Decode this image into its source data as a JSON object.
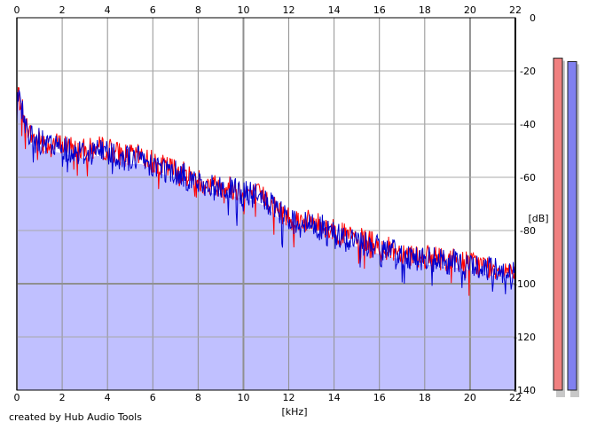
{
  "chart_data": {
    "type": "area",
    "title": "",
    "xlabel": "[kHz]",
    "ylabel": "[dB]",
    "xlim": [
      0,
      22
    ],
    "ylim": [
      -140,
      0
    ],
    "x_ticks": [
      0,
      2,
      4,
      6,
      8,
      10,
      12,
      14,
      16,
      18,
      20,
      22
    ],
    "y_ticks": [
      0,
      -20,
      -40,
      -60,
      -80,
      -100,
      -120,
      -140
    ],
    "x_tick_labels": [
      "0",
      "2",
      "4",
      "6",
      "8",
      "10",
      "12",
      "14",
      "16",
      "18",
      "20",
      "22"
    ],
    "y_tick_labels": [
      "0",
      "-20",
      "-40",
      "-60",
      "-80",
      "-100",
      "-120",
      "-140"
    ],
    "grid": true,
    "legend": false,
    "fill_color": "#c0c0ff",
    "series": [
      {
        "color": "#ff0000",
        "x": [
          0.0,
          0.05,
          0.1,
          0.2,
          0.3,
          0.4,
          0.6,
          0.8,
          1.0,
          1.2,
          1.5,
          2.0,
          2.5,
          3.0,
          3.5,
          4.0,
          4.5,
          5.0,
          5.5,
          6.0,
          6.5,
          7.0,
          7.5,
          8.0,
          8.5,
          9.0,
          9.5,
          10.0,
          10.5,
          11.0,
          11.5,
          12.0,
          12.5,
          13.0,
          13.5,
          14.0,
          14.5,
          15.0,
          15.5,
          16.0,
          16.5,
          17.0,
          17.5,
          18.0,
          18.5,
          19.0,
          19.5,
          20.0,
          20.5,
          21.0,
          21.5,
          22.0
        ],
        "y": [
          -38,
          -27,
          -30,
          -33,
          -36,
          -40,
          -44,
          -46,
          -45,
          -47,
          -47,
          -48,
          -49,
          -50,
          -49,
          -49,
          -51,
          -52,
          -52,
          -54,
          -56,
          -57,
          -59,
          -61,
          -63,
          -63,
          -64,
          -65,
          -66,
          -68,
          -72,
          -75,
          -76,
          -77,
          -78,
          -80,
          -82,
          -83,
          -84,
          -86,
          -87,
          -88,
          -89,
          -90,
          -90,
          -91,
          -91,
          -92,
          -93,
          -94,
          -94,
          -95
        ]
      },
      {
        "color": "#0000d0",
        "x": [
          0.0,
          0.05,
          0.1,
          0.2,
          0.3,
          0.4,
          0.6,
          0.8,
          1.0,
          1.2,
          1.5,
          2.0,
          2.5,
          3.0,
          3.5,
          4.0,
          4.5,
          5.0,
          5.5,
          6.0,
          6.5,
          7.0,
          7.5,
          8.0,
          8.5,
          9.0,
          9.5,
          10.0,
          10.5,
          11.0,
          11.5,
          12.0,
          12.5,
          13.0,
          13.5,
          14.0,
          14.5,
          15.0,
          15.5,
          16.0,
          16.5,
          17.0,
          17.5,
          18.0,
          18.5,
          19.0,
          19.5,
          20.0,
          20.5,
          21.0,
          21.5,
          22.0
        ],
        "y": [
          -40,
          -26,
          -29,
          -34,
          -37,
          -41,
          -45,
          -47,
          -46,
          -48,
          -48,
          -49,
          -50,
          -51,
          -50,
          -50,
          -52,
          -53,
          -53,
          -55,
          -57,
          -58,
          -60,
          -62,
          -64,
          -64,
          -65,
          -66,
          -67,
          -69,
          -73,
          -76,
          -77,
          -78,
          -79,
          -81,
          -83,
          -84,
          -85,
          -87,
          -88,
          -89,
          -90,
          -91,
          -91,
          -92,
          -92,
          -93,
          -94,
          -95,
          -95,
          -96
        ]
      }
    ],
    "level_meters": [
      {
        "color": "#f08080",
        "level": 0.975
      },
      {
        "color": "#8080f0",
        "level": 0.965
      }
    ]
  },
  "footer": {
    "credit": "created by Hub Audio Tools"
  }
}
